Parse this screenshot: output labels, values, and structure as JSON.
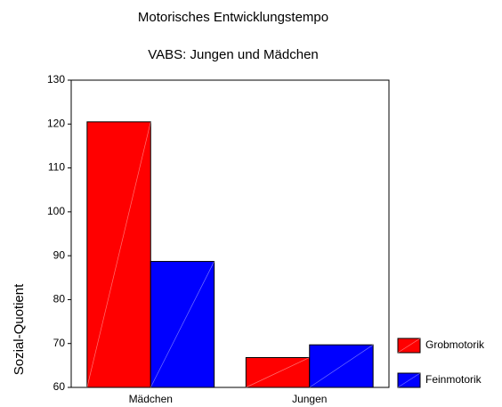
{
  "chart_data": {
    "type": "bar",
    "title": "Motorisches Entwicklungstempo",
    "subtitle": "VABS: Jungen und Mädchen",
    "y_label": "Sozial-Quotient",
    "categories": [
      "Mädchen",
      "Jungen"
    ],
    "series": [
      {
        "name": "Grobmotorik",
        "color": "#ff0000",
        "values": [
          120.5,
          66.8
        ]
      },
      {
        "name": "Feinmotorik",
        "color": "#0000ff",
        "values": [
          88.7,
          69.7
        ]
      }
    ],
    "ylim": [
      60,
      130
    ],
    "yticks": [
      60,
      70,
      80,
      90,
      100,
      110,
      120,
      130
    ],
    "grid": false,
    "legend": "right"
  }
}
